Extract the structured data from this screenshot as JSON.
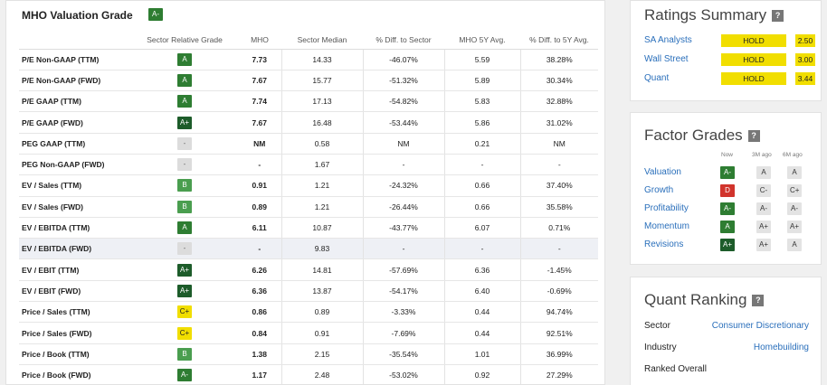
{
  "valuation": {
    "title": "MHO Valuation Grade",
    "grade": "A-",
    "headers": [
      "",
      "Sector Relative Grade",
      "MHO",
      "Sector Median",
      "% Diff. to Sector",
      "MHO 5Y Avg.",
      "% Diff. to 5Y Avg."
    ],
    "rows": [
      {
        "metric": "P/E Non-GAAP (TTM)",
        "grade": "A",
        "mho": "7.73",
        "median": "14.33",
        "diff_sector": "-46.07%",
        "avg5y": "5.59",
        "diff_5y": "38.28%"
      },
      {
        "metric": "P/E Non-GAAP (FWD)",
        "grade": "A",
        "mho": "7.67",
        "median": "15.77",
        "diff_sector": "-51.32%",
        "avg5y": "5.89",
        "diff_5y": "30.34%"
      },
      {
        "metric": "P/E GAAP (TTM)",
        "grade": "A",
        "mho": "7.74",
        "median": "17.13",
        "diff_sector": "-54.82%",
        "avg5y": "5.83",
        "diff_5y": "32.88%"
      },
      {
        "metric": "P/E GAAP (FWD)",
        "grade": "A+",
        "mho": "7.67",
        "median": "16.48",
        "diff_sector": "-53.44%",
        "avg5y": "5.86",
        "diff_5y": "31.02%"
      },
      {
        "metric": "PEG GAAP (TTM)",
        "grade": "-",
        "mho": "NM",
        "median": "0.58",
        "diff_sector": "NM",
        "avg5y": "0.21",
        "diff_5y": "NM"
      },
      {
        "metric": "PEG Non-GAAP (FWD)",
        "grade": "-",
        "mho": "-",
        "median": "1.67",
        "diff_sector": "-",
        "avg5y": "-",
        "diff_5y": "-"
      },
      {
        "metric": "EV / Sales (TTM)",
        "grade": "B",
        "mho": "0.91",
        "median": "1.21",
        "diff_sector": "-24.32%",
        "avg5y": "0.66",
        "diff_5y": "37.40%"
      },
      {
        "metric": "EV / Sales (FWD)",
        "grade": "B",
        "mho": "0.89",
        "median": "1.21",
        "diff_sector": "-26.44%",
        "avg5y": "0.66",
        "diff_5y": "35.58%"
      },
      {
        "metric": "EV / EBITDA (TTM)",
        "grade": "A",
        "mho": "6.11",
        "median": "10.87",
        "diff_sector": "-43.77%",
        "avg5y": "6.07",
        "diff_5y": "0.71%"
      },
      {
        "metric": "EV / EBITDA (FWD)",
        "grade": "-",
        "mho": "-",
        "median": "9.83",
        "diff_sector": "-",
        "avg5y": "-",
        "diff_5y": "-"
      },
      {
        "metric": "EV / EBIT (TTM)",
        "grade": "A+",
        "mho": "6.26",
        "median": "14.81",
        "diff_sector": "-57.69%",
        "avg5y": "6.36",
        "diff_5y": "-1.45%"
      },
      {
        "metric": "EV / EBIT (FWD)",
        "grade": "A+",
        "mho": "6.36",
        "median": "13.87",
        "diff_sector": "-54.17%",
        "avg5y": "6.40",
        "diff_5y": "-0.69%"
      },
      {
        "metric": "Price / Sales (TTM)",
        "grade": "C+",
        "mho": "0.86",
        "median": "0.89",
        "diff_sector": "-3.33%",
        "avg5y": "0.44",
        "diff_5y": "94.74%"
      },
      {
        "metric": "Price / Sales (FWD)",
        "grade": "C+",
        "mho": "0.84",
        "median": "0.91",
        "diff_sector": "-7.69%",
        "avg5y": "0.44",
        "diff_5y": "92.51%"
      },
      {
        "metric": "Price / Book (TTM)",
        "grade": "B",
        "mho": "1.38",
        "median": "2.15",
        "diff_sector": "-35.54%",
        "avg5y": "1.01",
        "diff_5y": "36.99%"
      },
      {
        "metric": "Price / Book (FWD)",
        "grade": "A-",
        "mho": "1.17",
        "median": "2.48",
        "diff_sector": "-53.02%",
        "avg5y": "0.92",
        "diff_5y": "27.29%"
      }
    ]
  },
  "ratings_summary": {
    "title": "Ratings Summary",
    "help": "?",
    "rows": [
      {
        "label": "SA Analysts",
        "rating": "HOLD",
        "score": "2.50"
      },
      {
        "label": "Wall Street",
        "rating": "HOLD",
        "score": "3.00"
      },
      {
        "label": "Quant",
        "rating": "HOLD",
        "score": "3.44"
      }
    ]
  },
  "factor_grades": {
    "title": "Factor Grades",
    "help": "?",
    "headers": {
      "now": "Now",
      "m3": "3M ago",
      "m6": "6M ago"
    },
    "rows": [
      {
        "label": "Valuation",
        "now": "A-",
        "m3": "A",
        "m6": "A"
      },
      {
        "label": "Growth",
        "now": "D",
        "m3": "C-",
        "m6": "C+"
      },
      {
        "label": "Profitability",
        "now": "A-",
        "m3": "A-",
        "m6": "A-"
      },
      {
        "label": "Momentum",
        "now": "A",
        "m3": "A+",
        "m6": "A+"
      },
      {
        "label": "Revisions",
        "now": "A+",
        "m3": "A+",
        "m6": "A"
      }
    ]
  },
  "quant_ranking": {
    "title": "Quant Ranking",
    "help": "?",
    "rows": [
      {
        "label": "Sector",
        "value": "Consumer Discretionary"
      },
      {
        "label": "Industry",
        "value": "Homebuilding"
      },
      {
        "label": "Ranked Overall",
        "value": ""
      }
    ]
  },
  "grade_colors": {
    "A+": "#1d5c2a",
    "A": "#2e7d32",
    "A-": "#2e7d32",
    "B": "#4a9e4f",
    "C+": "#f1de00",
    "D": "#d1342c",
    "-": "#dcdcdc",
    "hold": "#f1de00"
  }
}
